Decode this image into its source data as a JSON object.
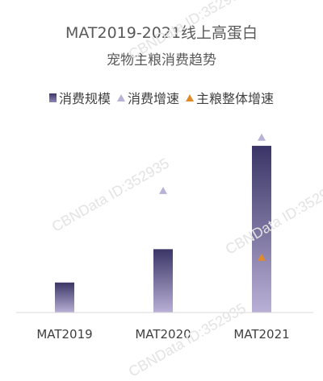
{
  "chart_data": {
    "type": "bar",
    "title": "MAT2019-2021线上高蛋白",
    "subtitle": "宠物主粮消费趋势",
    "categories": [
      "MAT2019",
      "MAT2020",
      "MAT2021"
    ],
    "series": [
      {
        "name": "消费规模",
        "type": "bar",
        "values": [
          18,
          38,
          100
        ],
        "color": "#3d3868"
      },
      {
        "name": "消费增速",
        "type": "marker",
        "values": [
          null,
          73,
          105
        ],
        "color": "#b8b2d6"
      },
      {
        "name": "主粮整体增速",
        "type": "marker",
        "values": [
          null,
          null,
          33
        ],
        "color": "#e08a2c"
      }
    ],
    "ylim": [
      0,
      115
    ],
    "grid": false,
    "legend_position": "top"
  },
  "watermark": "CBNData ID:352935"
}
